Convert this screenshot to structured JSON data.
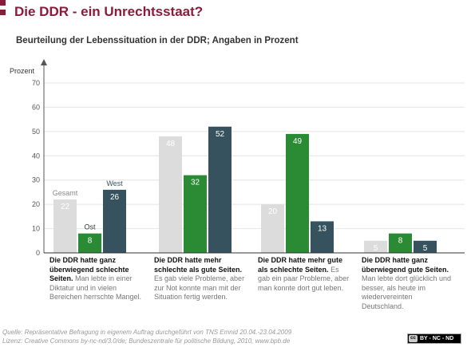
{
  "header": {
    "title": "Die DDR - ein Unrechtsstaat?",
    "subtitle": "Beurteilung der Lebenssituation in der DDR; Angaben in Prozent",
    "accent_color": "#8c1b3a"
  },
  "chart_data": {
    "type": "bar",
    "ylabel": "Prozent",
    "ylim": [
      0,
      70
    ],
    "yticks": [
      0,
      10,
      20,
      30,
      40,
      50,
      60,
      70
    ],
    "grid": true,
    "legend_placement": "labels on first group bars",
    "categories": [
      {
        "main": "Die DDR hatte ganz überwiegend schlechte Seiten.",
        "detail": "Man lebte in einer Diktatur und in vielen Bereichen herrschte Mangel."
      },
      {
        "main": "Die DDR hatte mehr schlechte als gute Seiten.",
        "detail": "Es gab viele Probleme, aber zur Not konnte man mit der Situation fertig werden."
      },
      {
        "main": "Die DDR hatte mehr gute als schlechte Seiten.",
        "detail": "Es gab ein paar Probleme, aber man konnte dort gut leben."
      },
      {
        "main": "Die DDR hatte ganz überwiegend gute Seiten.",
        "detail": "Man lebte dort glücklich und besser, als heute im wiedervereinten Deutschland."
      }
    ],
    "series": [
      {
        "name": "Gesamt",
        "values": [
          22,
          48,
          20,
          5
        ],
        "color": "#dcdcdc",
        "label_color": "#ffffff",
        "name_color": "#888888"
      },
      {
        "name": "Ost",
        "values": [
          8,
          32,
          49,
          8
        ],
        "color": "#2b8a34",
        "label_color": "#ffffff",
        "name_color": "#2b3a3a"
      },
      {
        "name": "West",
        "values": [
          26,
          52,
          13,
          5
        ],
        "color": "#35525e",
        "label_color": "#ffffff",
        "name_color": "#35525e"
      }
    ]
  },
  "footer": {
    "source": "Quelle: Repräsentative Befragung in eigenem Auftrag durchgeführt von TNS Emnid 20.04.-23.04.2009",
    "license": "Lizenz: Creative Commons by-nc-nd/3.0/de; Bundeszentrale für politische Bildung, 2010, www.bpb.de",
    "badge_icon": "cc-icon",
    "badge_icon_text": "cc",
    "badge_label": "BY - NC - ND"
  }
}
